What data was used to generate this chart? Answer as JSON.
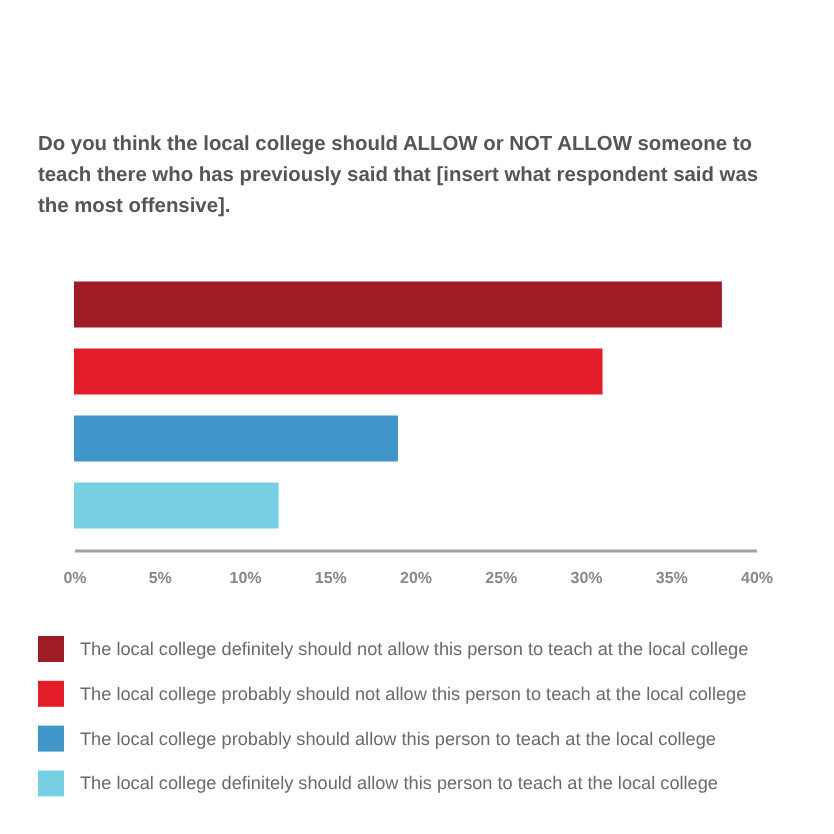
{
  "chart_data": {
    "type": "bar",
    "orientation": "horizontal",
    "stacked": true,
    "title": "Do you think the local college should ALLOW or NOT ALLOW someone to teach there who has previously said that [insert what respondent said was the most offensive].",
    "categories": [
      null,
      null,
      null,
      null
    ],
    "series": [
      {
        "name": "The local college definitely should not allow this person to teach at the local college",
        "color": "#a01c24",
        "values": [
          38,
          null,
          null,
          null
        ]
      },
      {
        "name": "The local college probably should not allow this person to teach at the local college",
        "color": "#e31e2a",
        "values": [
          null,
          31,
          null,
          null
        ]
      },
      {
        "name": "The local college probably should allow this person to teach at the local college",
        "color": "#4095c9",
        "values": [
          null,
          null,
          19,
          null
        ]
      },
      {
        "name": "The local college definitely should allow this person to teach at the local college",
        "color": "#76cfe3",
        "values": [
          null,
          null,
          null,
          12
        ]
      }
    ],
    "xlim": [
      0,
      40
    ],
    "xticks": [
      {
        "value": 0,
        "label": "0%"
      },
      {
        "value": 5,
        "label": "5%"
      },
      {
        "value": 10,
        "label": "10%"
      },
      {
        "value": 15,
        "label": "15%"
      },
      {
        "value": 20,
        "label": "20%"
      },
      {
        "value": 25,
        "label": "25%"
      },
      {
        "value": 30,
        "label": "30%"
      },
      {
        "value": 35,
        "label": "35%"
      },
      {
        "value": 40,
        "label": "40%"
      }
    ],
    "grid": false,
    "legend": "bottom"
  }
}
